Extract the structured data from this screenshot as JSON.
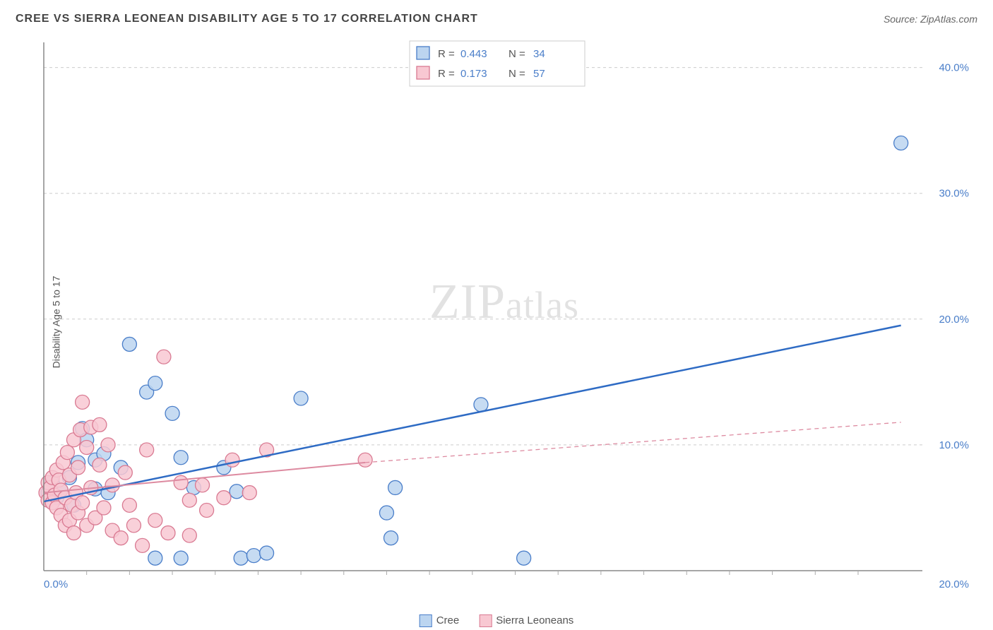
{
  "header": {
    "title": "CREE VS SIERRA LEONEAN DISABILITY AGE 5 TO 17 CORRELATION CHART",
    "source": "Source: ZipAtlas.com"
  },
  "y_axis": {
    "label": "Disability Age 5 to 17",
    "ticks": [
      0.0,
      10.0,
      20.0,
      30.0,
      40.0
    ],
    "tick_labels": [
      "",
      "10.0%",
      "20.0%",
      "30.0%",
      "40.0%"
    ],
    "min": 0.0,
    "max": 42.0
  },
  "x_axis": {
    "ticks": [
      0.0,
      20.0
    ],
    "tick_labels": [
      "0.0%",
      "20.0%"
    ],
    "minor_ticks_count": 19,
    "min": 0.0,
    "max": 20.5
  },
  "grid_color": "#cccccc",
  "axis_color": "#888888",
  "background_color": "#ffffff",
  "watermark": {
    "text1": "ZIP",
    "text2": "atlas"
  },
  "legend_top": {
    "rows": [
      {
        "swatch_fill": "#bcd5f0",
        "swatch_stroke": "#4a7ec9",
        "r_label": "R =",
        "r_value": "0.443",
        "n_label": "N =",
        "n_value": "34"
      },
      {
        "swatch_fill": "#f8c8d2",
        "swatch_stroke": "#d97a92",
        "r_label": "R =",
        "r_value": "0.173",
        "n_label": "N =",
        "n_value": "57"
      }
    ]
  },
  "legend_bottom": {
    "items": [
      {
        "swatch_fill": "#bcd5f0",
        "swatch_stroke": "#4a7ec9",
        "label": "Cree"
      },
      {
        "swatch_fill": "#f8c8d2",
        "swatch_stroke": "#d97a92",
        "label": "Sierra Leoneans"
      }
    ]
  },
  "series": [
    {
      "name": "Cree",
      "marker_fill": "#bcd5f0",
      "marker_stroke": "#4a7ec9",
      "marker_radius": 10,
      "marker_opacity": 0.85,
      "trend": {
        "solid_from": [
          0.0,
          5.5
        ],
        "solid_to": [
          20.0,
          19.5
        ],
        "color": "#2e6bc4",
        "width": 2.5
      },
      "points": [
        [
          0.1,
          6.2
        ],
        [
          0.2,
          7.0
        ],
        [
          0.3,
          5.8
        ],
        [
          0.4,
          6.4
        ],
        [
          0.6,
          7.4
        ],
        [
          0.7,
          5.2
        ],
        [
          0.8,
          8.6
        ],
        [
          0.9,
          11.3
        ],
        [
          1.0,
          10.4
        ],
        [
          1.2,
          6.5
        ],
        [
          1.2,
          8.8
        ],
        [
          1.4,
          9.3
        ],
        [
          1.5,
          6.2
        ],
        [
          1.8,
          8.2
        ],
        [
          2.0,
          18.0
        ],
        [
          2.4,
          14.2
        ],
        [
          2.6,
          14.9
        ],
        [
          2.6,
          1.0
        ],
        [
          3.0,
          12.5
        ],
        [
          3.2,
          9.0
        ],
        [
          3.2,
          1.0
        ],
        [
          3.5,
          6.6
        ],
        [
          4.2,
          8.2
        ],
        [
          4.5,
          6.3
        ],
        [
          4.6,
          1.0
        ],
        [
          4.9,
          1.2
        ],
        [
          5.2,
          1.4
        ],
        [
          6.0,
          13.7
        ],
        [
          8.0,
          4.6
        ],
        [
          8.2,
          6.6
        ],
        [
          8.1,
          2.6
        ],
        [
          10.2,
          13.2
        ],
        [
          11.2,
          1.0
        ],
        [
          20.0,
          34.0
        ]
      ]
    },
    {
      "name": "Sierra Leoneans",
      "marker_fill": "#f8c8d2",
      "marker_stroke": "#d97a92",
      "marker_radius": 10,
      "marker_opacity": 0.85,
      "trend": {
        "solid_from": [
          0.0,
          6.2
        ],
        "solid_to": [
          7.5,
          8.6
        ],
        "dash_to": [
          20.0,
          11.8
        ],
        "color": "#dd8aa0",
        "width": 2
      },
      "points": [
        [
          0.05,
          6.2
        ],
        [
          0.1,
          5.6
        ],
        [
          0.1,
          7.0
        ],
        [
          0.15,
          6.6
        ],
        [
          0.2,
          5.4
        ],
        [
          0.2,
          7.4
        ],
        [
          0.25,
          6.0
        ],
        [
          0.3,
          8.0
        ],
        [
          0.3,
          5.0
        ],
        [
          0.35,
          7.2
        ],
        [
          0.4,
          4.4
        ],
        [
          0.4,
          6.4
        ],
        [
          0.45,
          8.6
        ],
        [
          0.5,
          3.6
        ],
        [
          0.5,
          5.8
        ],
        [
          0.55,
          9.4
        ],
        [
          0.6,
          4.0
        ],
        [
          0.6,
          7.6
        ],
        [
          0.65,
          5.2
        ],
        [
          0.7,
          10.4
        ],
        [
          0.7,
          3.0
        ],
        [
          0.75,
          6.2
        ],
        [
          0.8,
          8.2
        ],
        [
          0.8,
          4.6
        ],
        [
          0.85,
          11.2
        ],
        [
          0.9,
          13.4
        ],
        [
          0.9,
          5.4
        ],
        [
          1.0,
          9.8
        ],
        [
          1.0,
          3.6
        ],
        [
          1.1,
          11.4
        ],
        [
          1.1,
          6.6
        ],
        [
          1.2,
          4.2
        ],
        [
          1.3,
          8.4
        ],
        [
          1.3,
          11.6
        ],
        [
          1.4,
          5.0
        ],
        [
          1.5,
          10.0
        ],
        [
          1.6,
          3.2
        ],
        [
          1.6,
          6.8
        ],
        [
          1.8,
          2.6
        ],
        [
          1.9,
          7.8
        ],
        [
          2.0,
          5.2
        ],
        [
          2.1,
          3.6
        ],
        [
          2.3,
          2.0
        ],
        [
          2.4,
          9.6
        ],
        [
          2.6,
          4.0
        ],
        [
          2.8,
          17.0
        ],
        [
          2.9,
          3.0
        ],
        [
          3.2,
          7.0
        ],
        [
          3.4,
          5.6
        ],
        [
          3.4,
          2.8
        ],
        [
          3.7,
          6.8
        ],
        [
          3.8,
          4.8
        ],
        [
          4.2,
          5.8
        ],
        [
          4.4,
          8.8
        ],
        [
          4.8,
          6.2
        ],
        [
          5.2,
          9.6
        ],
        [
          7.5,
          8.8
        ]
      ]
    }
  ]
}
